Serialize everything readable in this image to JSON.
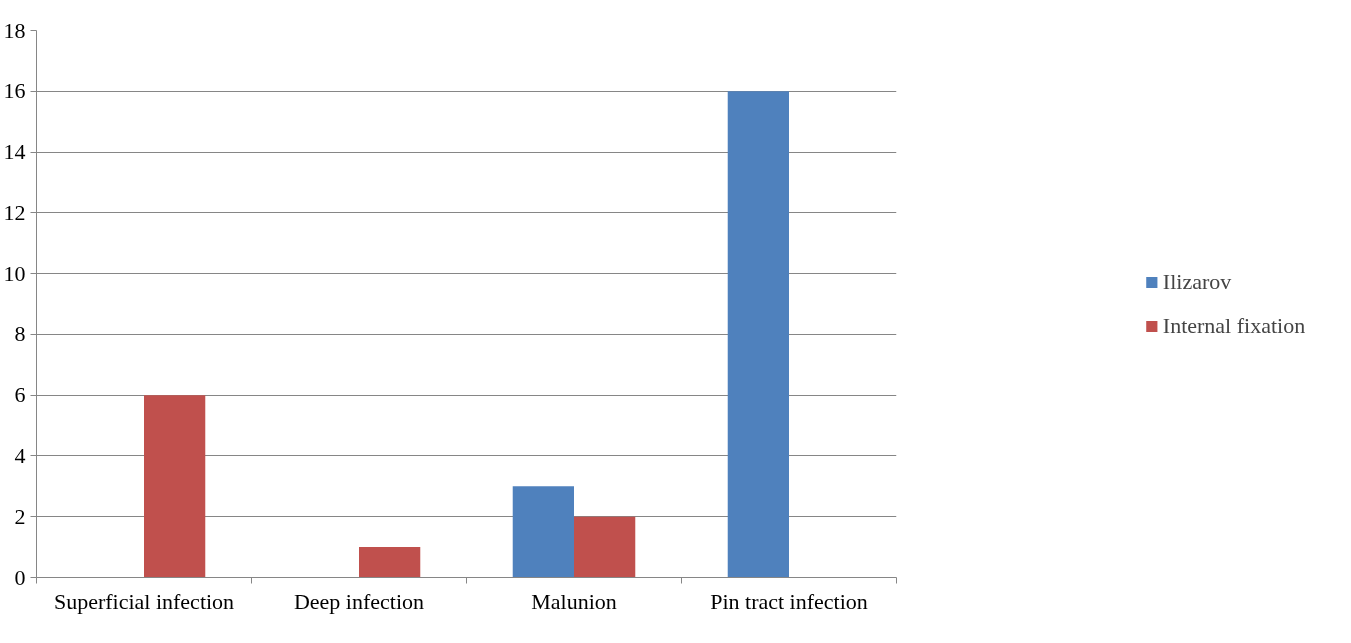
{
  "chart_data": {
    "type": "bar",
    "categories": [
      "Superficial infection",
      "Deep infection",
      "Malunion",
      "Pin tract infection"
    ],
    "series": [
      {
        "name": "Ilizarov",
        "color": "#4f81bd",
        "values": [
          0,
          0,
          3,
          16
        ]
      },
      {
        "name": "Internal fixation",
        "color": "#c0504d",
        "values": [
          6,
          1,
          2,
          0
        ]
      }
    ],
    "ylim": [
      0,
      18
    ],
    "yticks": [
      0,
      2,
      4,
      6,
      8,
      10,
      12,
      14,
      16,
      18
    ],
    "grid": "y",
    "legend": "right"
  }
}
